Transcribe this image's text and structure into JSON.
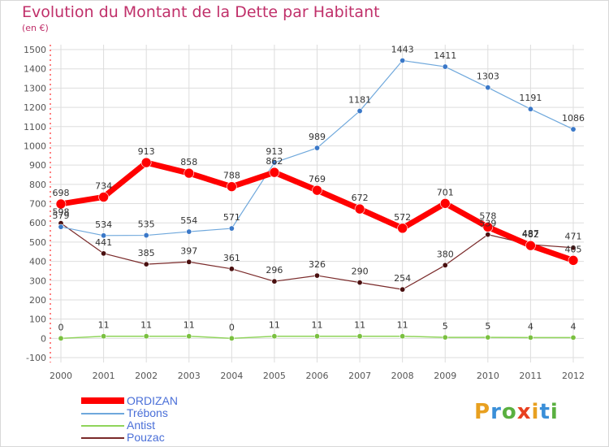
{
  "title": "Evolution du Montant de la Dette par Habitant",
  "subtitle": "(en €)",
  "logo": "Proxiti",
  "chart_data": {
    "type": "line",
    "x": [
      "2000",
      "2001",
      "2002",
      "2003",
      "2004",
      "2005",
      "2006",
      "2007",
      "2008",
      "2009",
      "2010",
      "2011",
      "2012"
    ],
    "ylim": [
      -100,
      1500
    ],
    "yticks": [
      -100,
      0,
      100,
      200,
      300,
      400,
      500,
      600,
      700,
      800,
      900,
      1000,
      1100,
      1200,
      1300,
      1400,
      1500
    ],
    "grid": true,
    "legend_position": "bottom-left",
    "series": [
      {
        "name": "ORDIZAN",
        "color": "#ff0000",
        "values": [
          698,
          734,
          913,
          858,
          788,
          862,
          769,
          672,
          572,
          701,
          578,
          482,
          405
        ]
      },
      {
        "name": "Trébons",
        "color": "#6fa8dc",
        "values": [
          579,
          534,
          535,
          554,
          571,
          913,
          989,
          1181,
          1443,
          1411,
          1303,
          1191,
          1086
        ]
      },
      {
        "name": "Antist",
        "color": "#8fd45a",
        "values": [
          0,
          11,
          11,
          11,
          0,
          11,
          11,
          11,
          11,
          5,
          5,
          4,
          4
        ]
      },
      {
        "name": "Pouzac",
        "color": "#7a2a2a",
        "values": [
          598,
          441,
          385,
          397,
          361,
          296,
          326,
          290,
          254,
          380,
          539,
          487,
          471
        ]
      }
    ]
  }
}
